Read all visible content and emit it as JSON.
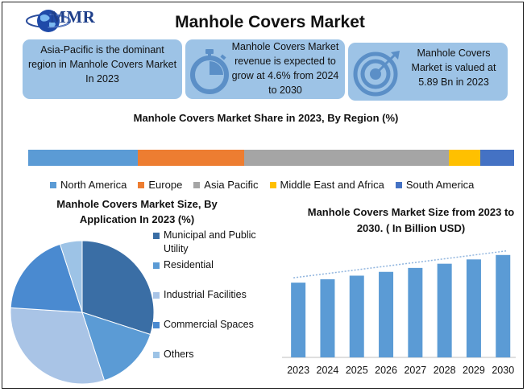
{
  "header": {
    "logo_text": "MMR",
    "title": "Manhole Covers Market"
  },
  "cards": [
    {
      "text": "Asia-Pacific is the dominant region in Manhole Covers Market In 2023",
      "icon": "none"
    },
    {
      "text": "Manhole Covers Market revenue is expected to grow at 4.6% from 2024 to 2030",
      "icon": "stopwatch-icon"
    },
    {
      "text": "Manhole Covers Market is valued at 5.89 Bn in 2023",
      "icon": "target-icon"
    }
  ],
  "chart_data": [
    {
      "type": "bar",
      "orientation": "stacked-horizontal",
      "title": "Manhole Covers Market Share in 2023, By Region (%)",
      "categories": [
        "North America",
        "Europe",
        "Asia Pacific",
        "Middle East and Africa",
        "South America"
      ],
      "values": [
        22.5,
        22.0,
        42.0,
        6.5,
        7.0
      ],
      "colors": [
        "#5b9bd5",
        "#ed7d31",
        "#a5a5a5",
        "#ffc000",
        "#4472c4"
      ],
      "legend": "bottom"
    },
    {
      "type": "pie",
      "title": "Manhole Covers Market Size, By Application In 2023 (%)",
      "categories": [
        "Municipal and Public Utility",
        "Residential",
        "Industrial Facilities",
        "Commercial Spaces",
        "Others"
      ],
      "values": [
        30,
        15,
        31,
        19,
        5
      ],
      "colors": [
        "#3a6ea5",
        "#5b9bd5",
        "#a9c4e6",
        "#4a8ad0",
        "#9dc3e6"
      ],
      "legend": "right"
    },
    {
      "type": "bar",
      "title": "Manhole Covers Market Size from 2023 to 2030. ( In Billion  USD)",
      "categories": [
        "2023",
        "2024",
        "2025",
        "2026",
        "2027",
        "2028",
        "2029",
        "2030"
      ],
      "values": [
        5.89,
        6.16,
        6.44,
        6.74,
        7.05,
        7.38,
        7.72,
        8.07
      ],
      "ylim": [
        0,
        8.5
      ],
      "color": "#5b9bd5",
      "trendline": true,
      "grid": false
    }
  ]
}
